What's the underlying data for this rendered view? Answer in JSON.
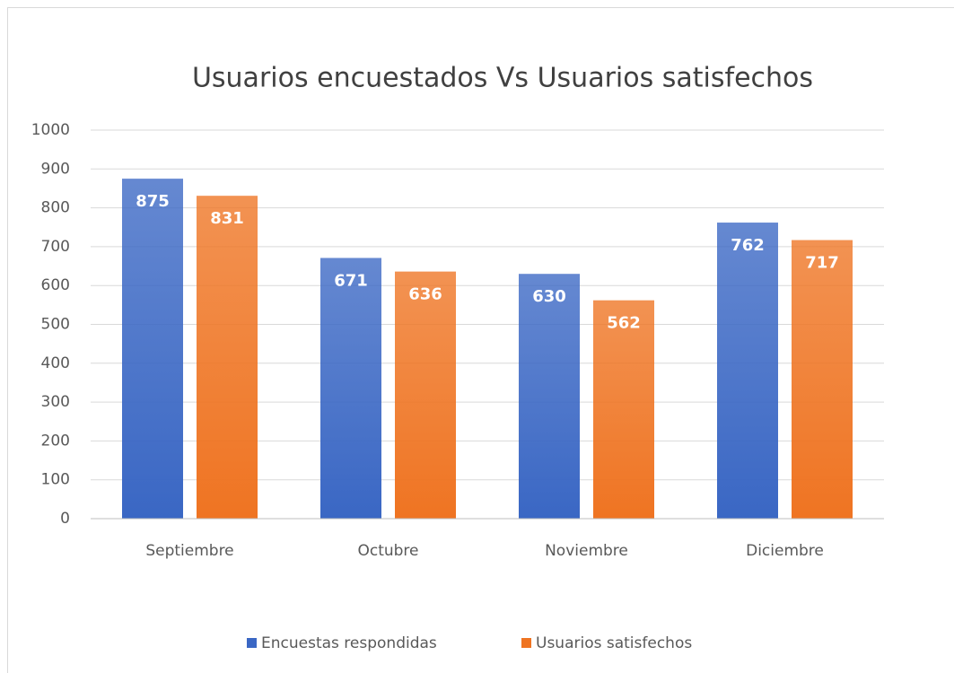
{
  "chart_data": {
    "type": "bar",
    "title": "Usuarios encuestados Vs Usuarios satisfechos",
    "categories": [
      "Septiembre",
      "Octubre",
      "Noviembre",
      "Diciembre"
    ],
    "series": [
      {
        "name": "Encuestas respondidas",
        "color": "#3a67c4",
        "values": [
          875,
          671,
          630,
          762
        ]
      },
      {
        "name": "Usuarios satisfechos",
        "color": "#ef7422",
        "values": [
          831,
          636,
          562,
          717
        ]
      }
    ],
    "ylim": [
      0,
      1000
    ],
    "yticks": [
      0,
      100,
      200,
      300,
      400,
      500,
      600,
      700,
      800,
      900,
      1000
    ],
    "grid": true,
    "legend": "bottom"
  }
}
